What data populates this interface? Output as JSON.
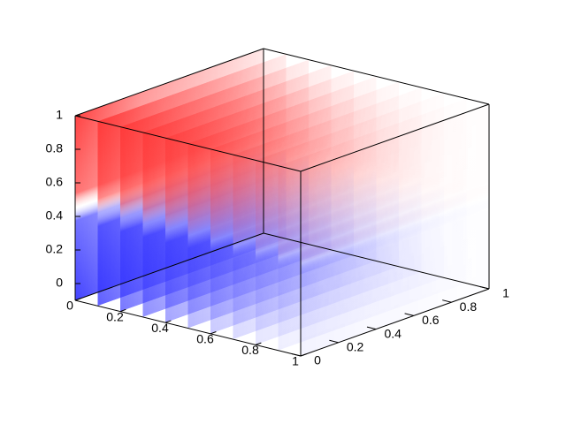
{
  "chart_data": {
    "type": "volume",
    "xlim": [
      0,
      1
    ],
    "ylim": [
      0,
      1
    ],
    "zlim": [
      -0.1,
      1
    ],
    "xticks": [
      0,
      0.2,
      0.4,
      0.6,
      0.8,
      1
    ],
    "yticks": [
      0,
      0.2,
      0.4,
      0.6,
      0.8,
      1
    ],
    "zticks": [
      0,
      0.2,
      0.4,
      0.6,
      0.8,
      1
    ],
    "colors": {
      "low": "#3030ff",
      "mid": "#ffffff",
      "high": "#ff3030"
    }
  }
}
